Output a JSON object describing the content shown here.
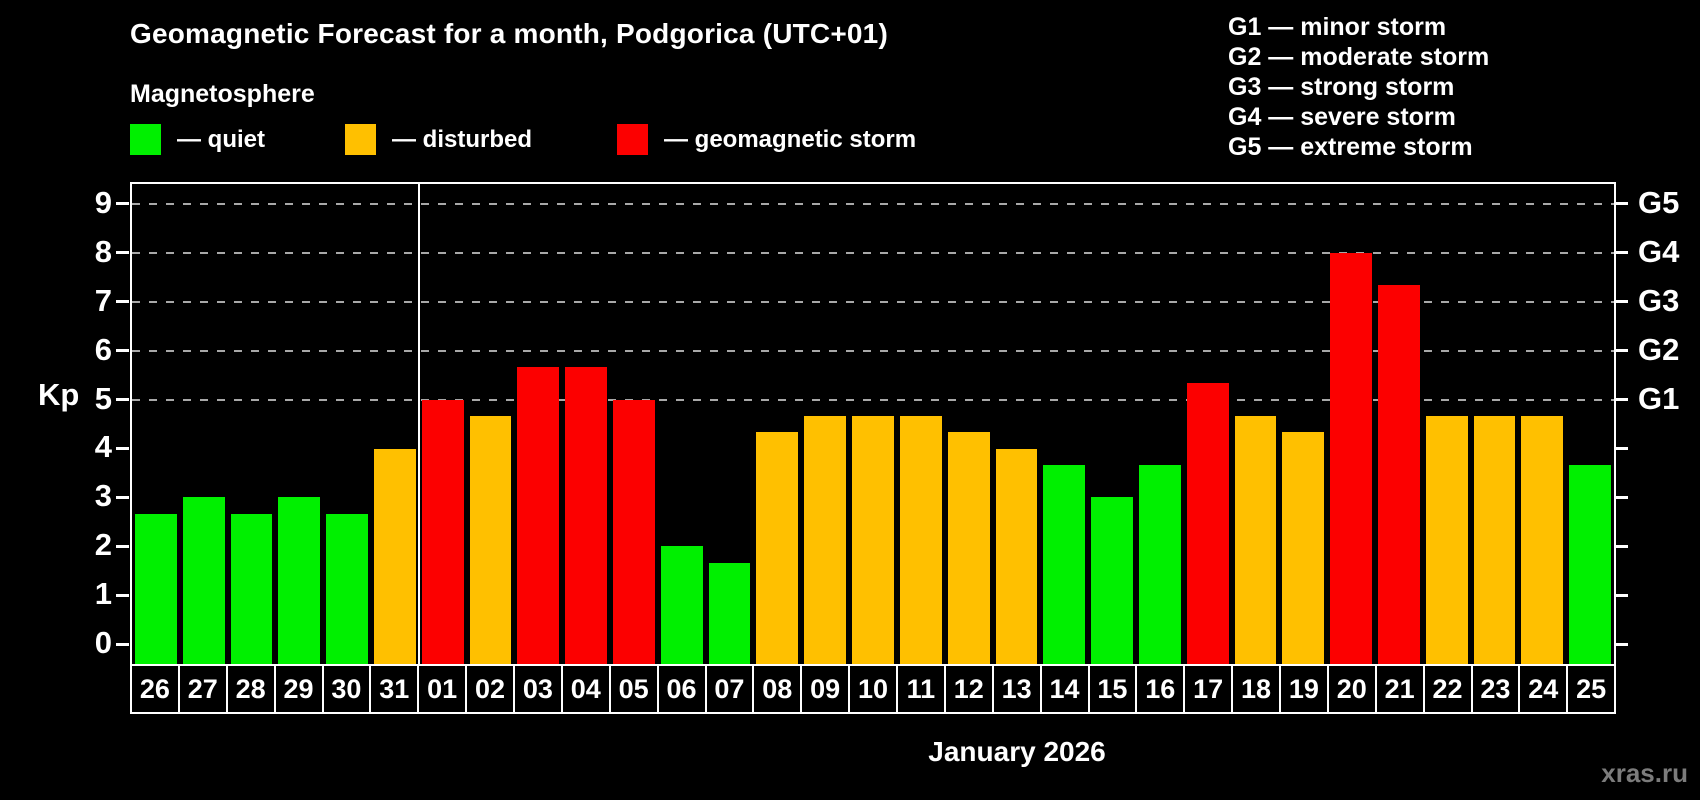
{
  "title": "Geomagnetic Forecast for a month, Podgorica (UTC+01)",
  "subtitle": "Magnetosphere",
  "legend": [
    {
      "key": "quiet",
      "label": "— quiet",
      "color": "#00f000"
    },
    {
      "key": "disturbed",
      "label": "— disturbed",
      "color": "#ffc000"
    },
    {
      "key": "storm",
      "label": "— geomagnetic storm",
      "color": "#fc0000"
    }
  ],
  "g_legend": [
    "G1 — minor storm",
    "G2 — moderate storm",
    "G3 — strong storm",
    "G4 — severe storm",
    "G5 — extreme storm"
  ],
  "watermark": "xras.ru",
  "chart_data": {
    "type": "bar",
    "title": "Geomagnetic Forecast for a month, Podgorica (UTC+01)",
    "ylabel": "Kp",
    "xlabel": "January 2026",
    "ylim": [
      -0.4,
      9.4
    ],
    "y_ticks": [
      0,
      1,
      2,
      3,
      4,
      5,
      6,
      7,
      8,
      9
    ],
    "gridlines": [
      5,
      6,
      7,
      8,
      9
    ],
    "grid_color": "#a8a8a8",
    "legend_position": "top",
    "categories": [
      "26",
      "27",
      "28",
      "29",
      "30",
      "31",
      "01",
      "02",
      "03",
      "04",
      "05",
      "06",
      "07",
      "08",
      "09",
      "10",
      "11",
      "12",
      "13",
      "14",
      "15",
      "16",
      "17",
      "18",
      "19",
      "20",
      "21",
      "22",
      "23",
      "24",
      "25"
    ],
    "values": [
      2.67,
      3,
      2.67,
      3,
      2.67,
      4,
      5,
      4.67,
      5.67,
      5.67,
      5,
      2,
      1.67,
      4.33,
      4.67,
      4.67,
      4.67,
      4.33,
      4,
      3.67,
      3,
      3.67,
      5.33,
      4.67,
      4.33,
      8,
      7.33,
      4.67,
      4.67,
      4.67,
      3.67
    ],
    "statuses": [
      "quiet",
      "quiet",
      "quiet",
      "quiet",
      "quiet",
      "disturbed",
      "storm",
      "disturbed",
      "storm",
      "storm",
      "storm",
      "quiet",
      "quiet",
      "disturbed",
      "disturbed",
      "disturbed",
      "disturbed",
      "disturbed",
      "disturbed",
      "quiet",
      "quiet",
      "quiet",
      "storm",
      "disturbed",
      "disturbed",
      "storm",
      "storm",
      "disturbed",
      "disturbed",
      "disturbed",
      "quiet"
    ],
    "colors": {
      "quiet": "#00f000",
      "disturbed": "#ffc000",
      "storm": "#fc0000"
    },
    "month_separator_after_index": 5,
    "g_levels": [
      {
        "label": "G1",
        "value": 5
      },
      {
        "label": "G2",
        "value": 6
      },
      {
        "label": "G3",
        "value": 7
      },
      {
        "label": "G4",
        "value": 8
      },
      {
        "label": "G5",
        "value": 9
      }
    ]
  }
}
